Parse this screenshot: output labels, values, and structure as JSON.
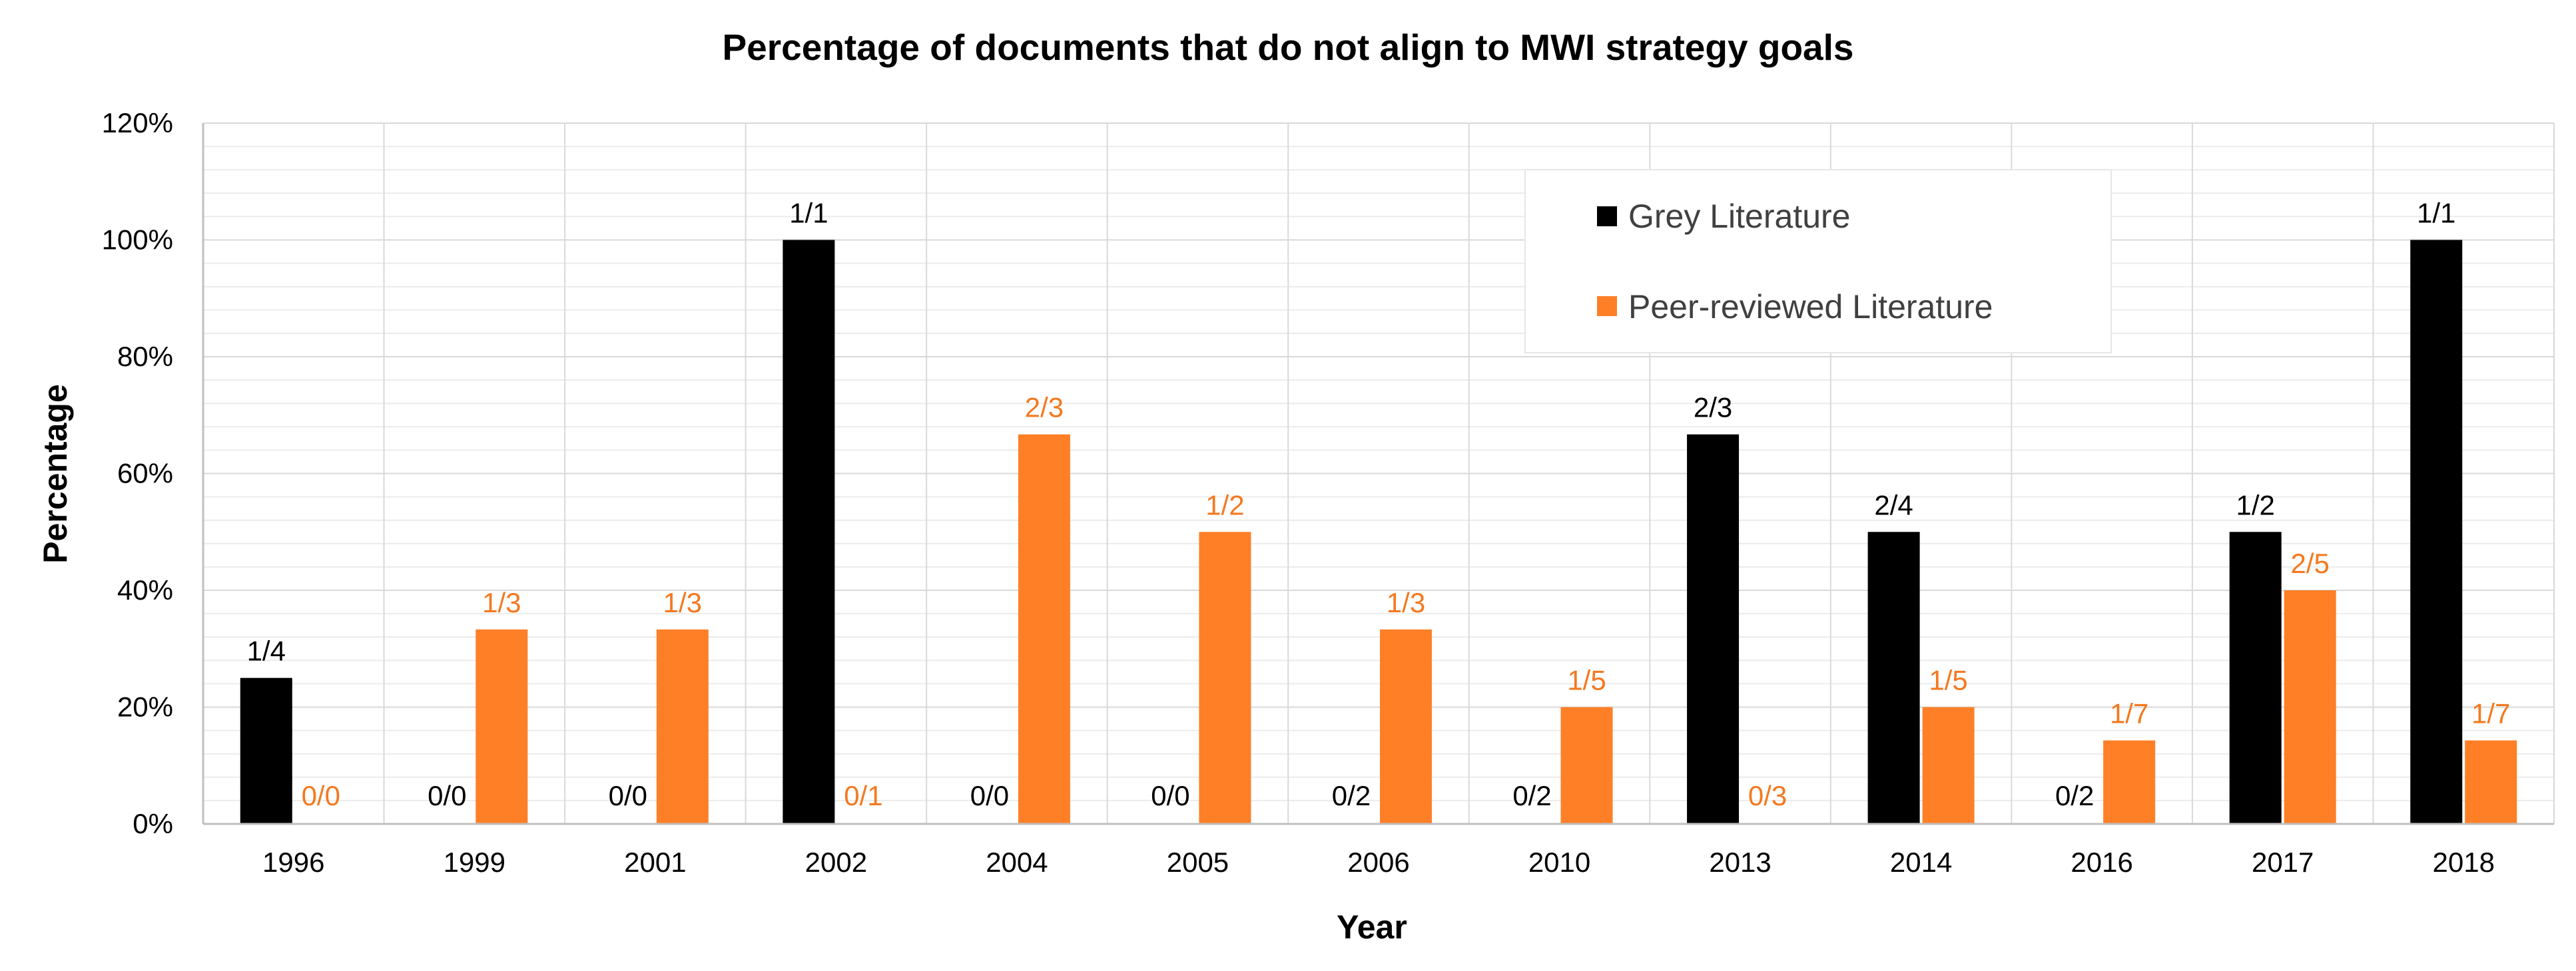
{
  "chart_data": {
    "type": "bar",
    "title": "Percentage of documents that do not align to MWI strategy goals",
    "xlabel": "Year",
    "ylabel": "Percentage",
    "ylim": [
      0,
      120
    ],
    "y_tick_values": [
      0,
      20,
      40,
      60,
      80,
      100,
      120
    ],
    "y_tick_labels": [
      "0%",
      "20%",
      "40%",
      "60%",
      "80%",
      "100%",
      "120%"
    ],
    "grid": true,
    "legend_position": "top-right",
    "categories": [
      "1996",
      "1999",
      "2001",
      "2002",
      "2004",
      "2005",
      "2006",
      "2010",
      "2013",
      "2014",
      "2016",
      "2017",
      "2018"
    ],
    "series": [
      {
        "name": "Grey Literature",
        "color": "#000000",
        "label_color": "#000000",
        "values": [
          25,
          0,
          0,
          100,
          0,
          0,
          0,
          0,
          66.7,
          50,
          0,
          50,
          100
        ],
        "labels": [
          "1/4",
          "0/0",
          "0/0",
          "1/1",
          "0/0",
          "0/0",
          "0/2",
          "0/2",
          "2/3",
          "2/4",
          "0/2",
          "1/2",
          "1/1"
        ]
      },
      {
        "name": "Peer-reviewed Literature",
        "color": "#FF7F27",
        "label_color": "#F47920",
        "values": [
          0,
          33.3,
          33.3,
          0,
          66.7,
          50,
          33.3,
          20,
          0,
          20,
          14.3,
          40,
          14.3
        ],
        "labels": [
          "0/0",
          "1/3",
          "1/3",
          "0/1",
          "2/3",
          "1/2",
          "1/3",
          "1/5",
          "0/3",
          "1/5",
          "1/7",
          "2/5",
          "1/7"
        ]
      }
    ]
  }
}
